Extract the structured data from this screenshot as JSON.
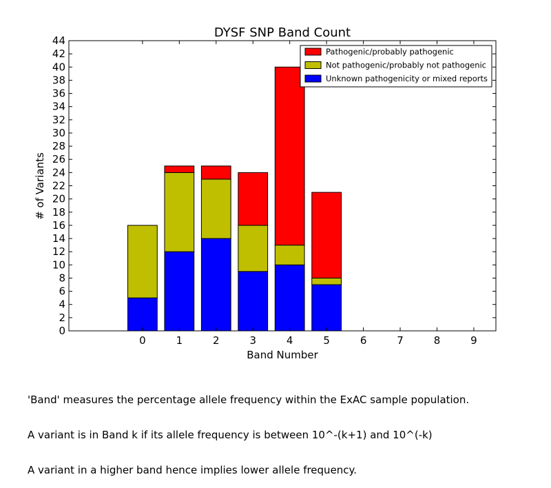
{
  "chart_data": {
    "type": "bar",
    "stacked": true,
    "title": "DYSF SNP Band Count",
    "xlabel": "Band Number",
    "ylabel": "# of Variants",
    "categories": [
      "0",
      "1",
      "2",
      "3",
      "4",
      "5",
      "6",
      "7",
      "8",
      "9"
    ],
    "ylim": [
      0,
      44
    ],
    "yticks": [
      0,
      2,
      4,
      6,
      8,
      10,
      12,
      14,
      16,
      18,
      20,
      22,
      24,
      26,
      28,
      30,
      32,
      34,
      36,
      38,
      40,
      42,
      44
    ],
    "xlim": [
      -1.6,
      10.0
    ],
    "grid": false,
    "legend_position": "top-right",
    "series": [
      {
        "name": "Unknown pathogenicity or mixed reports",
        "color": "#0000ff",
        "values": [
          5,
          12,
          14,
          9,
          10,
          7,
          0,
          0,
          0,
          0
        ]
      },
      {
        "name": "Not pathogenic/probably not pathogenic",
        "color": "#bfbf00",
        "values": [
          11,
          12,
          9,
          7,
          3,
          1,
          0,
          0,
          0,
          0
        ]
      },
      {
        "name": "Pathogenic/probably pathogenic",
        "color": "#ff0000",
        "values": [
          0,
          1,
          2,
          8,
          27,
          13,
          0,
          0,
          0,
          0
        ]
      }
    ],
    "legend_order": [
      2,
      1,
      0
    ]
  },
  "caption": [
    "'Band' measures the percentage allele frequency within the ExAC sample population.",
    "A variant is in Band k if its allele frequency is between 10^-(k+1) and 10^(-k)",
    "A variant in a higher band hence implies lower allele frequency."
  ]
}
